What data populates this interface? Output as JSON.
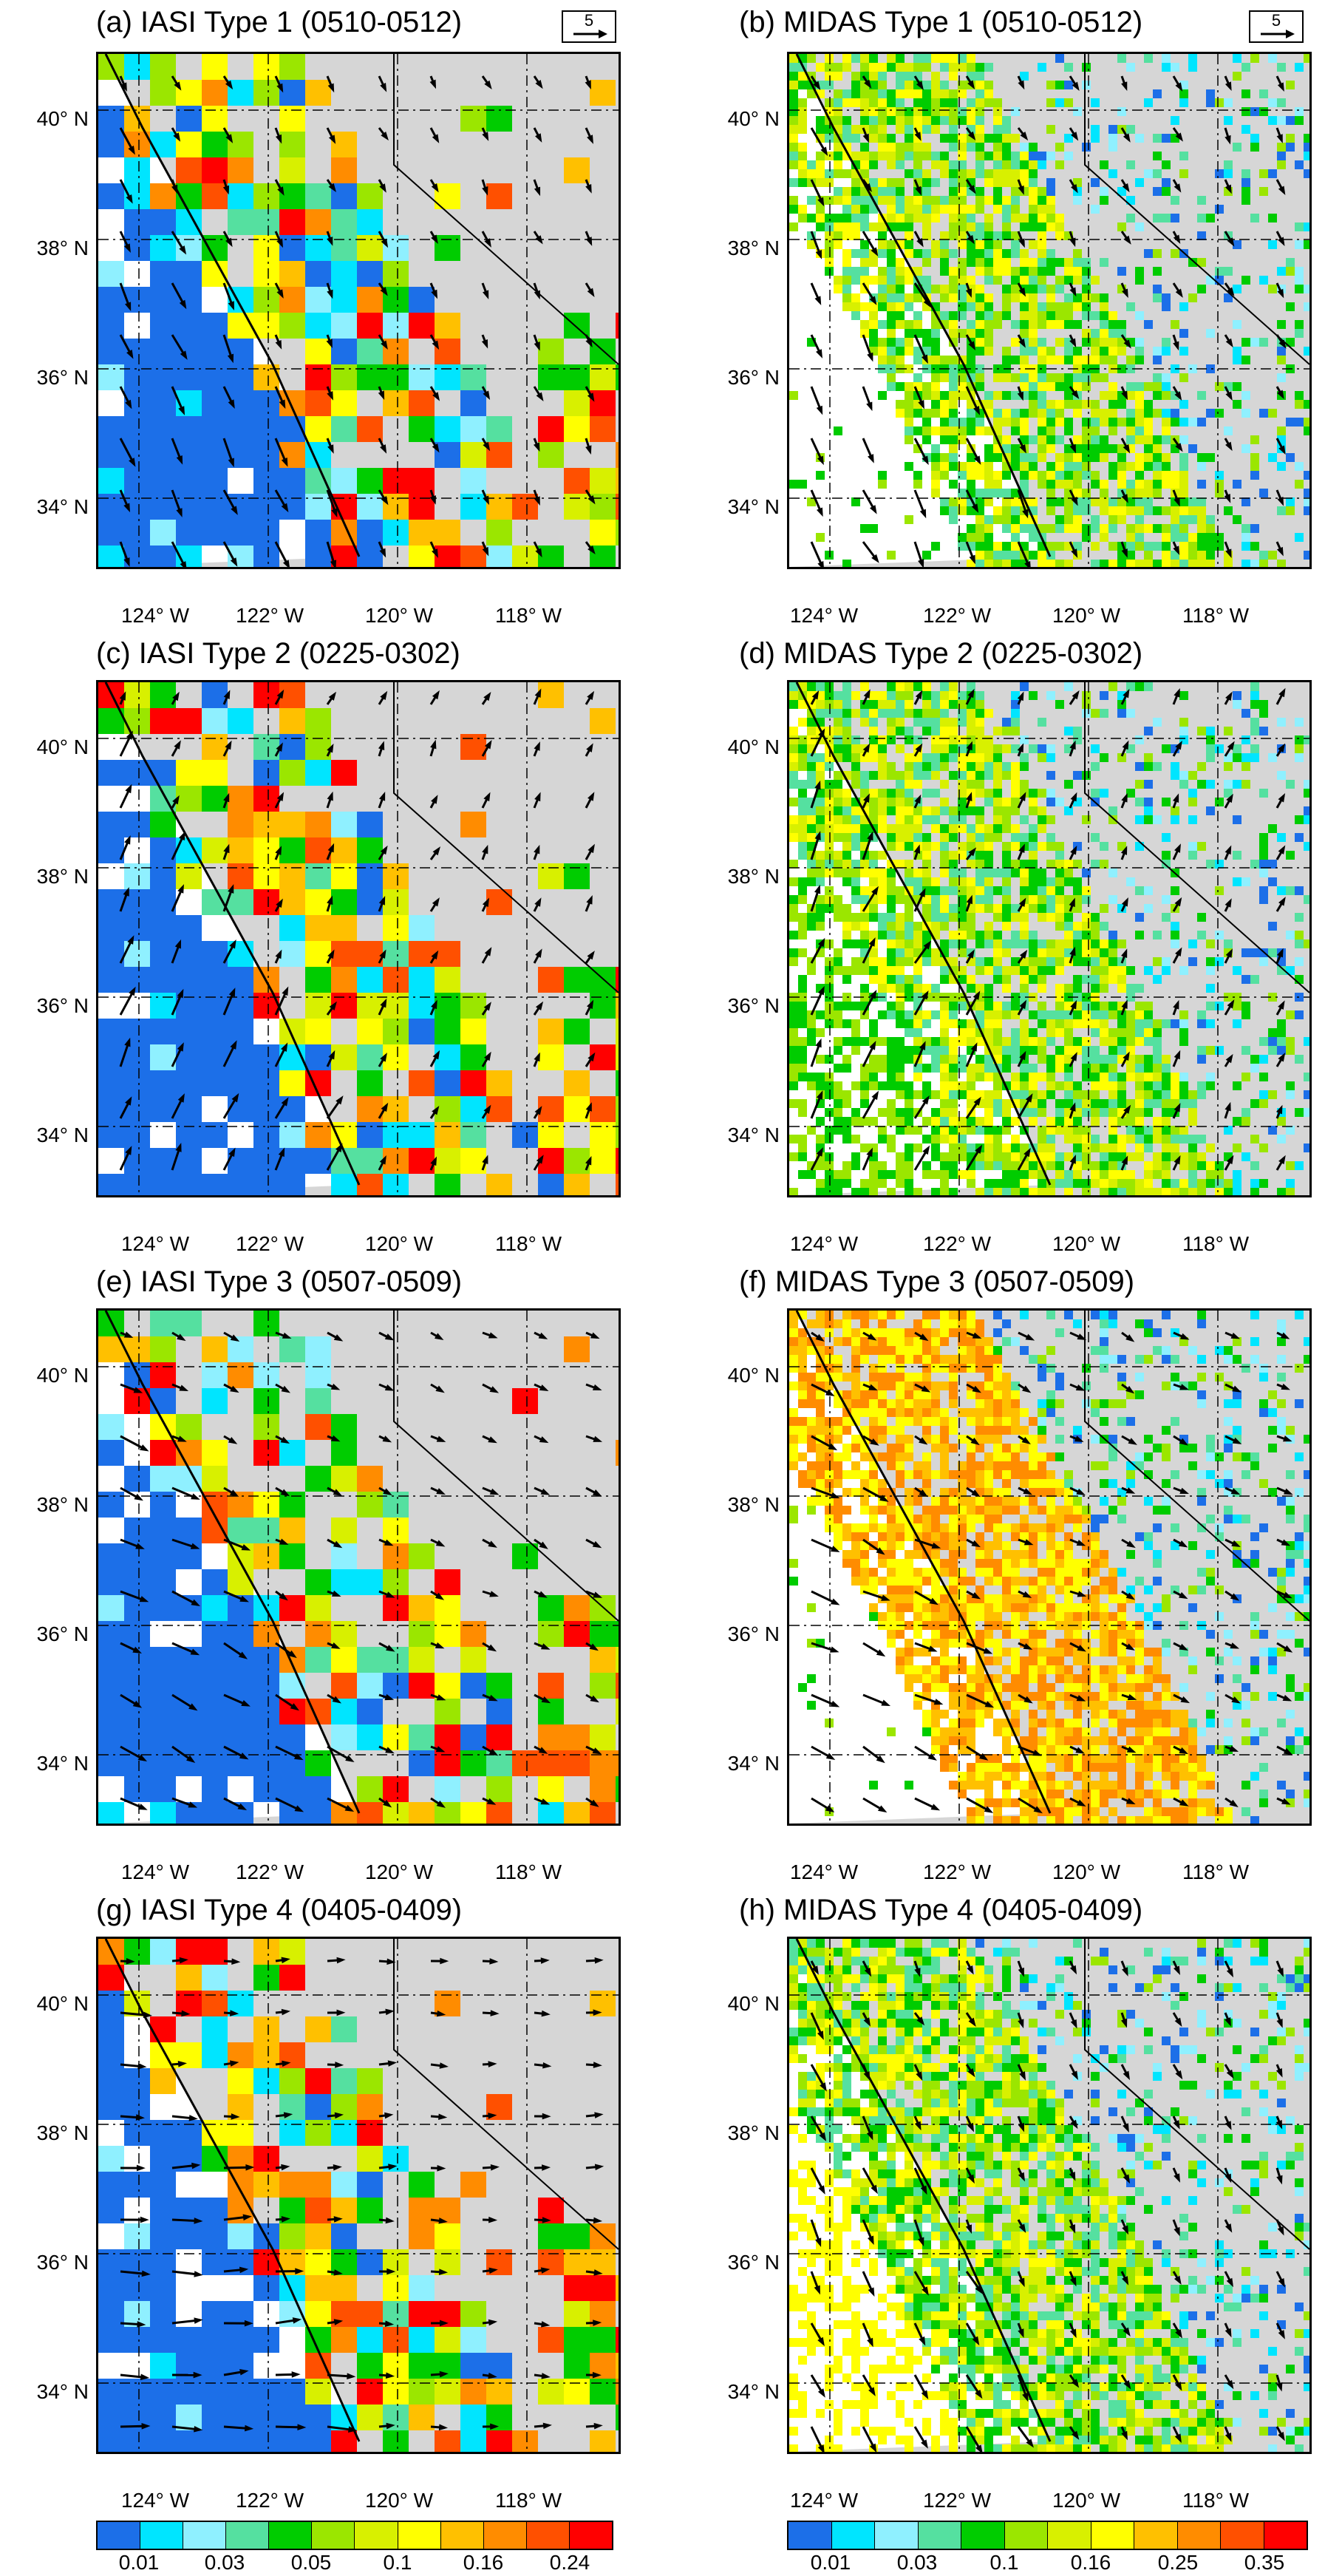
{
  "panels": [
    {
      "id": "a",
      "title": "(a) IASI Type 1 (0510-0512)",
      "source": "IASI",
      "type": 1,
      "wind": [
        1,
        -2
      ]
    },
    {
      "id": "b",
      "title": "(b) MIDAS Type 1 (0510-0512)",
      "source": "MIDAS",
      "type": 1,
      "wind": [
        1,
        -2
      ]
    },
    {
      "id": "c",
      "title": "(c) IASI Type 2 (0225-0302)",
      "source": "IASI",
      "type": 2,
      "wind": [
        1,
        2
      ]
    },
    {
      "id": "d",
      "title": "(d) MIDAS Type 2 (0225-0302)",
      "source": "MIDAS",
      "type": 2,
      "wind": [
        1,
        2
      ]
    },
    {
      "id": "e",
      "title": "(e) IASI Type 3 (0507-0509)",
      "source": "IASI",
      "type": 3,
      "wind": [
        2,
        -1
      ]
    },
    {
      "id": "f",
      "title": "(f) MIDAS Type 3 (0507-0509)",
      "source": "MIDAS",
      "type": 3,
      "wind": [
        2,
        -1
      ]
    },
    {
      "id": "g",
      "title": "(g) IASI Type 4 (0405-0409)",
      "source": "IASI",
      "type": 4,
      "wind": [
        2,
        0
      ]
    },
    {
      "id": "h",
      "title": "(h) MIDAS Type 4 (0405-0409)",
      "source": "MIDAS",
      "type": 4,
      "wind": [
        1,
        -2
      ]
    }
  ],
  "lat_labels": [
    "40° N",
    "38° N",
    "36° N",
    "34° N"
  ],
  "lon_labels": [
    "124° W",
    "122° W",
    "120° W",
    "118° W"
  ],
  "reference_vector": {
    "value": "5"
  },
  "colorbar_iasi": {
    "labels": [
      "0.01",
      "0.03",
      "0.05",
      "0.1",
      "0.16",
      "0.24"
    ],
    "colors": [
      "#1c6fe8",
      "#00e5ff",
      "#8ff0ff",
      "#55e0a0",
      "#00cc00",
      "#9be600",
      "#d8f000",
      "#ffff00",
      "#ffc000",
      "#ff8c00",
      "#ff5000",
      "#ff0000"
    ]
  },
  "colorbar_midas": {
    "labels": [
      "0.01",
      "0.03",
      "0.1",
      "0.16",
      "0.25",
      "0.35"
    ],
    "colors": [
      "#1c6fe8",
      "#00e5ff",
      "#8ff0ff",
      "#55e0a0",
      "#00cc00",
      "#9be600",
      "#d8f000",
      "#ffff00",
      "#ffc000",
      "#ff8c00",
      "#ff5000",
      "#ff0000"
    ]
  }
}
